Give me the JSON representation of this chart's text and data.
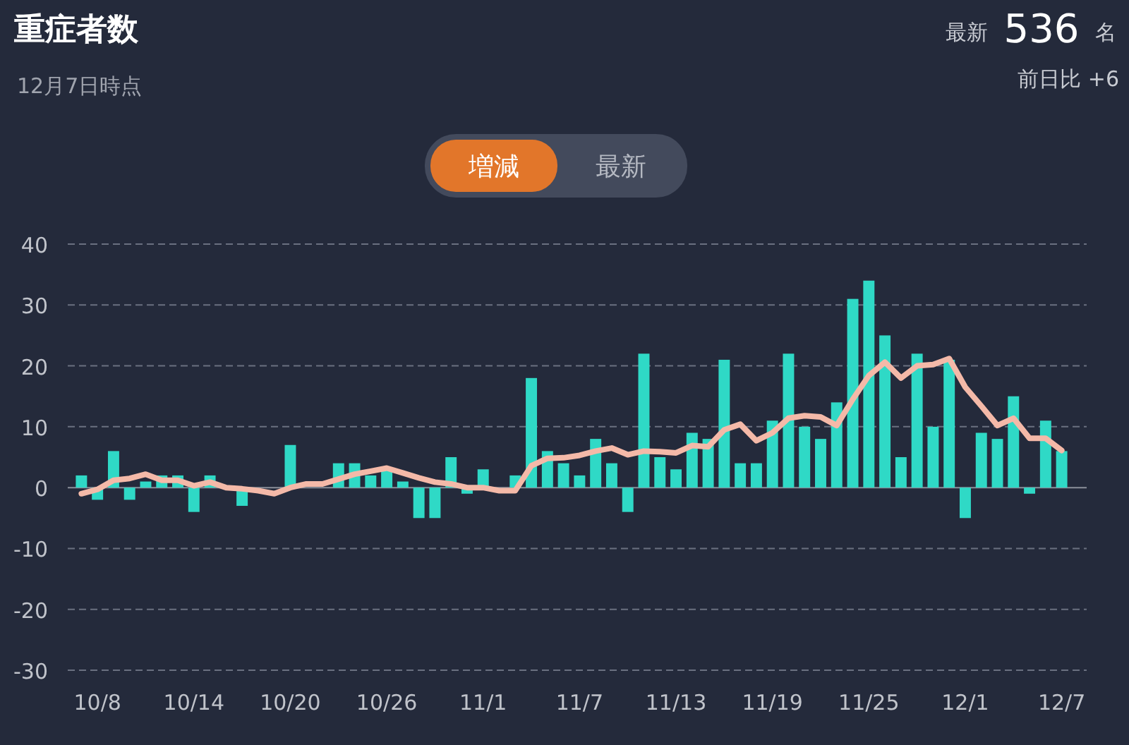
{
  "chart_data": {
    "type": "bar",
    "title": "重症者数",
    "subtitle": "12月7日時点",
    "annotations": [
      "最新",
      "536",
      "名",
      "前日比 +6",
      "増減",
      "最新"
    ],
    "categories": [
      null,
      "10/8",
      null,
      null,
      null,
      null,
      null,
      "10/14",
      null,
      null,
      null,
      null,
      null,
      "10/20",
      null,
      null,
      null,
      null,
      null,
      "10/26",
      null,
      null,
      null,
      null,
      null,
      "11/1",
      null,
      null,
      null,
      null,
      null,
      "11/7",
      null,
      null,
      null,
      null,
      null,
      "11/13",
      null,
      null,
      null,
      null,
      null,
      "11/19",
      null,
      null,
      null,
      null,
      null,
      "11/25",
      null,
      null,
      null,
      null,
      null,
      "12/1",
      null,
      null,
      null,
      null,
      null,
      "12/7"
    ],
    "series": [
      {
        "color": "#2fd9c6",
        "values": [
          2,
          -2,
          6,
          -2,
          1,
          2,
          2,
          -4,
          2,
          0,
          -3,
          0,
          0,
          7,
          0,
          0,
          4,
          4,
          2,
          3,
          1,
          -5,
          -5,
          5,
          -1,
          3,
          0,
          2,
          18,
          6,
          4,
          2,
          8,
          4,
          -4,
          22,
          5,
          3,
          9,
          8,
          21,
          4,
          4,
          11,
          22,
          10,
          8,
          14,
          31,
          34,
          25,
          5,
          22,
          10,
          21,
          -5,
          9,
          8,
          15,
          -1,
          11,
          6
        ]
      },
      {
        "type": "line",
        "color": "#f4b9a8",
        "values": [
          -1,
          -0.3,
          1.2,
          1.5,
          2.2,
          1.2,
          1.2,
          0.3,
          0.9,
          0,
          -0.2,
          -0.5,
          -1,
          0,
          0.6,
          0.6,
          1.4,
          2.2,
          2.7,
          3.2,
          2.4,
          1.6,
          0.9,
          0.6,
          0,
          0,
          -0.5,
          -0.5,
          3.6,
          4.8,
          4.9,
          5.3,
          6,
          6.5,
          5.4,
          6,
          5.9,
          5.7,
          6.9,
          6.7,
          9.5,
          10.4,
          7.7,
          9,
          11.4,
          11.8,
          11.6,
          10.2,
          14.5,
          18.4,
          20.6,
          18,
          20,
          20.2,
          21.2,
          16.5,
          13.4,
          10.2,
          11.4,
          8.1,
          8.1,
          6.1
        ]
      }
    ],
    "ylim": [
      -30,
      40
    ],
    "yticks": [
      -30,
      -20,
      -10,
      0,
      10,
      20,
      30,
      40
    ],
    "grid": "y"
  }
}
